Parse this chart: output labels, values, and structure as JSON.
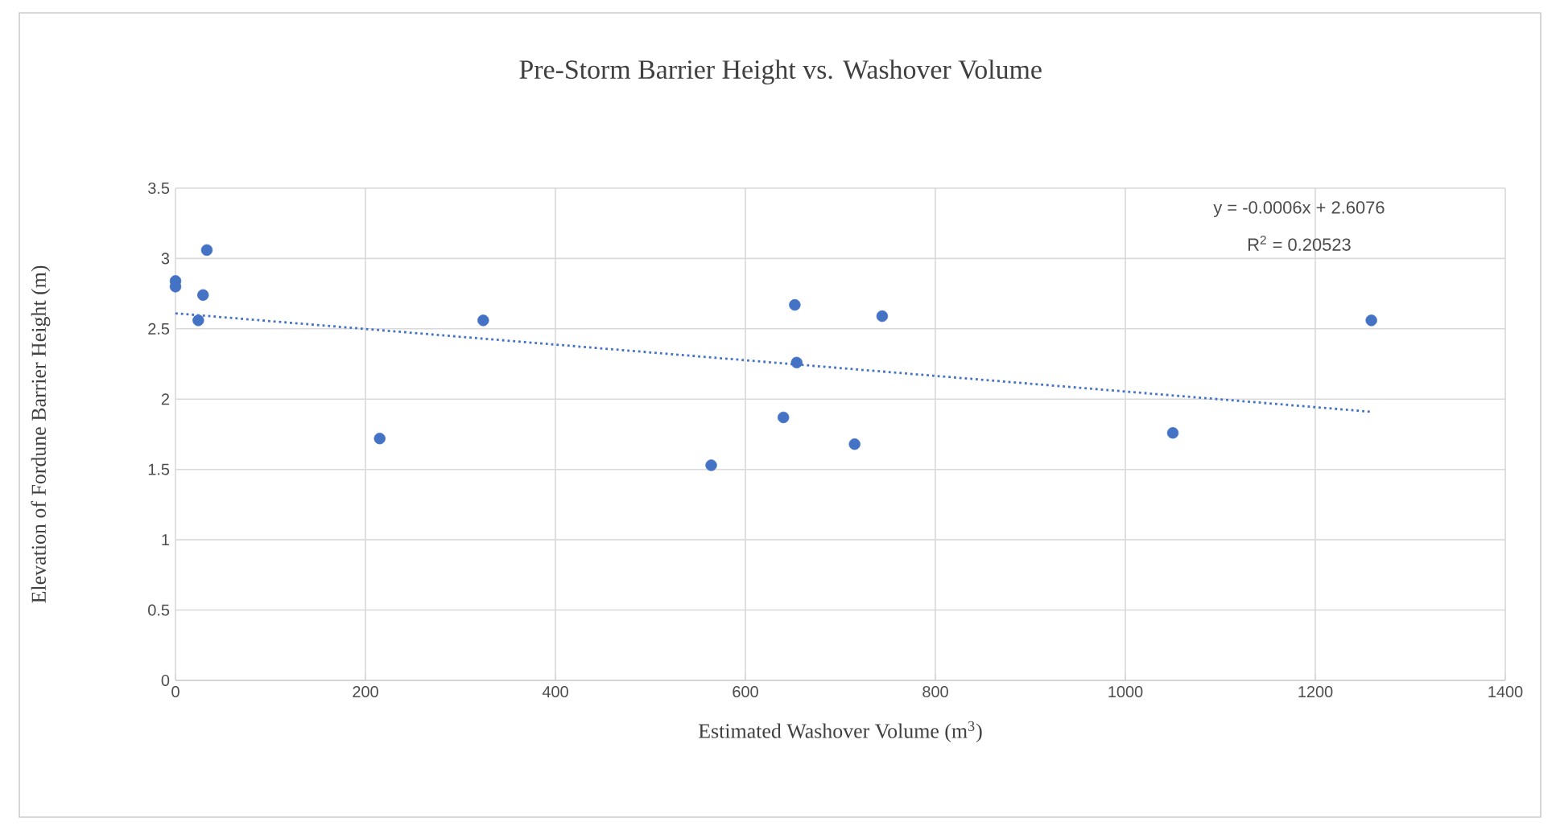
{
  "chart_data": {
    "type": "scatter",
    "title": "Pre-Storm Barrier Height vs. Washover Volume",
    "xlabel": "Estimated Washover Volume (m$^{3}$)",
    "ylabel": "Elevation of Fordune Barrier Height (m)",
    "annotations": [
      "y = -0.0006x + 2.6076",
      "R$^{2}$ = 0.20523"
    ],
    "xlim": [
      0,
      1400
    ],
    "xticks": [
      0,
      200,
      400,
      600,
      800,
      1000,
      1200,
      1400
    ],
    "ylim": [
      0,
      3.5
    ],
    "yticks": [
      0,
      0.5,
      1,
      1.5,
      2,
      2.5,
      3,
      3.5
    ],
    "grid": true,
    "series": [
      {
        "marker": "circle",
        "color": "#4472c4",
        "x": [
          33,
          0,
          0,
          29,
          24,
          215,
          324,
          652,
          654,
          640,
          564,
          744,
          715,
          1050,
          1259
        ],
        "values": [
          3.06,
          2.84,
          2.8,
          2.74,
          2.56,
          1.72,
          2.56,
          2.67,
          2.26,
          1.87,
          1.53,
          2.59,
          1.68,
          1.76,
          2.56
        ]
      },
      {
        "type": "line",
        "color": "#4472c4",
        "line_style": "dotted",
        "marker": "none",
        "x": [
          0,
          1259
        ],
        "values": [
          2.61,
          1.91
        ]
      }
    ]
  }
}
